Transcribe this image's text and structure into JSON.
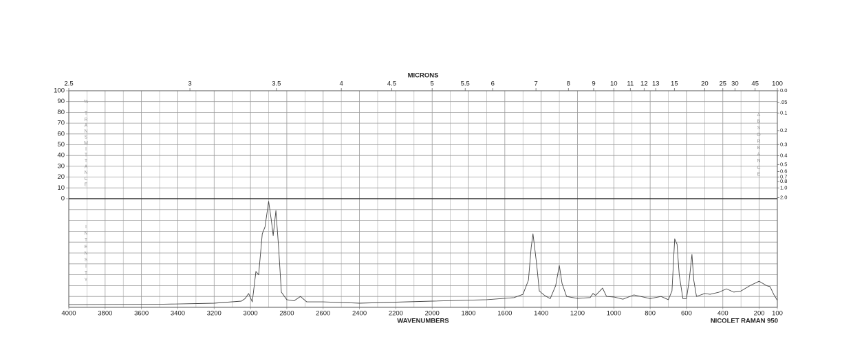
{
  "chart_data": [
    {
      "type": "transmittance-grid",
      "xlabel": "MICRONS",
      "xlim": [
        2.5,
        100
      ],
      "xticks": [
        2.5,
        3,
        3.5,
        4,
        4.5,
        5,
        5.5,
        6,
        7,
        8,
        9,
        10,
        11,
        12,
        13,
        15,
        20,
        25,
        30,
        45,
        100
      ],
      "ylabel": "% TRANSMITTANCE",
      "ylim": [
        0,
        100
      ],
      "yticks": [
        0,
        10,
        20,
        30,
        40,
        50,
        60,
        70,
        80,
        90,
        100
      ],
      "y2label": "ABSORBANCE",
      "y2scale": "absorbance",
      "y2ticks": [
        {
          "value": 0,
          "label": "0.0"
        },
        {
          "value": 0.05,
          "label": ".05"
        },
        0.1,
        0.2,
        0.3,
        0.4,
        0.5,
        0.6,
        0.7,
        0.8,
        {
          "value": 1,
          "label": "1.0"
        },
        {
          "value": 2,
          "label": "2.0"
        }
      ],
      "grid": true
    },
    {
      "type": "line",
      "xlabel": "WAVENUMBERS",
      "annotation": "NICOLET RAMAN 950",
      "ylabel": "INTENSITY",
      "xlim": [
        4000,
        100
      ],
      "xticks": [
        4000,
        3800,
        3600,
        3400,
        3200,
        3000,
        2800,
        2600,
        2400,
        2200,
        2000,
        1800,
        1600,
        1400,
        1200,
        1000,
        800,
        600,
        400,
        200,
        100
      ],
      "xgrid": [
        3900,
        3700,
        3500,
        3300,
        3100,
        2900,
        2700,
        2500,
        2300,
        2100,
        1900,
        1700,
        1500,
        1300,
        1100,
        900,
        700,
        500,
        300
      ],
      "ylim": [
        0,
        100
      ],
      "ygrid": [
        0,
        10,
        20,
        30,
        40,
        50,
        60,
        70,
        80,
        90,
        100
      ],
      "x": [
        4000,
        3500,
        3200,
        3050,
        3030,
        3010,
        2990,
        2970,
        2955,
        2935,
        2920,
        2900,
        2885,
        2875,
        2860,
        2845,
        2830,
        2800,
        2760,
        2725,
        2690,
        2600,
        2400,
        2000,
        1700,
        1550,
        1500,
        1470,
        1455,
        1445,
        1425,
        1410,
        1380,
        1350,
        1320,
        1300,
        1285,
        1260,
        1200,
        1130,
        1115,
        1100,
        1062,
        1040,
        1000,
        950,
        890,
        800,
        740,
        700,
        680,
        665,
        652,
        640,
        620,
        600,
        585,
        570,
        560,
        545,
        500,
        470,
        420,
        380,
        340,
        300,
        250,
        200,
        160,
        140,
        120,
        100
      ],
      "series": [
        {
          "color": "#444444",
          "values": [
            2.5,
            2.8,
            3.8,
            5.7,
            8,
            12.7,
            5,
            33,
            30,
            67.7,
            74,
            97.5,
            80,
            66,
            89,
            55,
            14,
            7,
            6,
            10,
            5,
            5,
            3.8,
            5.7,
            7,
            8.9,
            12,
            25,
            55,
            67.7,
            40,
            15,
            10.8,
            8,
            20,
            38.6,
            22,
            10,
            8.2,
            9,
            12.7,
            11,
            17.7,
            10,
            9.5,
            7.5,
            11.4,
            8,
            10,
            7,
            15,
            63,
            58,
            30,
            8,
            8,
            25,
            48.7,
            25,
            10,
            12.7,
            12,
            14,
            17,
            14,
            15,
            20,
            24,
            20,
            19,
            12,
            6.3
          ]
        }
      ]
    }
  ]
}
